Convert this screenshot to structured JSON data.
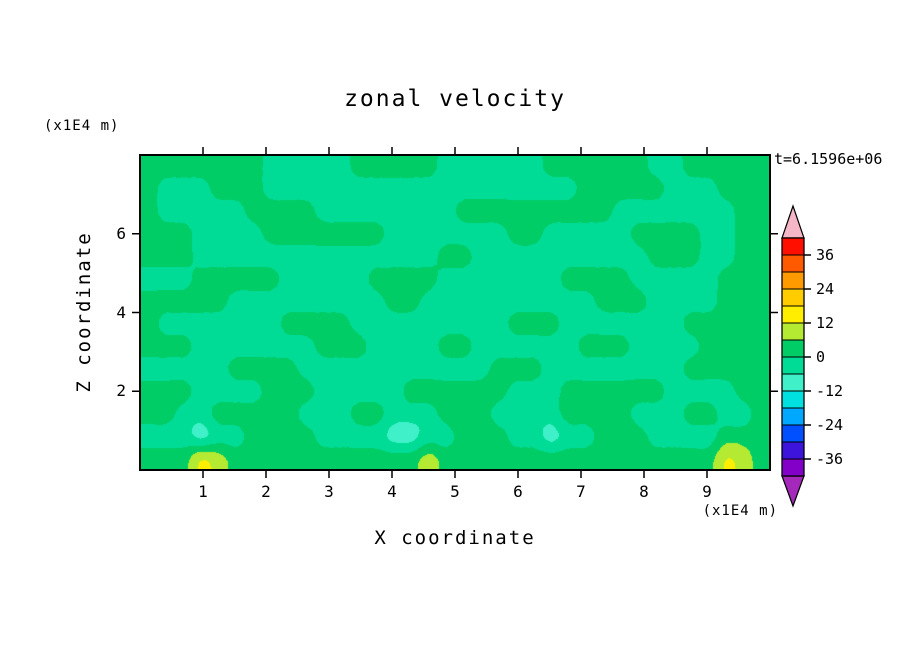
{
  "title": "zonal velocity",
  "time_label": "t=6.1596e+06",
  "axes": {
    "x_label": "X coordinate",
    "y_label": "Z coordinate",
    "x_unit": "(x1E4 m)",
    "y_unit": "(x1E4 m)",
    "x_tick_labels": [
      "1",
      "2",
      "3",
      "4",
      "5",
      "6",
      "7",
      "8",
      "9"
    ],
    "x_tick_values": [
      1,
      2,
      3,
      4,
      5,
      6,
      7,
      8,
      9
    ],
    "y_tick_labels": [
      "6",
      "4",
      "2"
    ],
    "y_tick_values": [
      6,
      4,
      2
    ]
  },
  "colorbar": {
    "labels": [
      "36",
      "24",
      "12",
      "0",
      "-12",
      "-24",
      "-36"
    ],
    "labeled_boundary_indices": [
      1,
      3,
      5,
      7,
      9,
      11,
      13
    ],
    "boundaries": [
      42,
      36,
      30,
      24,
      18,
      12,
      6,
      0,
      -6,
      -12,
      -18,
      -24,
      -30,
      -36,
      -42
    ],
    "band_colors": [
      "#FF0F00",
      "#FF5A00",
      "#FF9B00",
      "#FFCC00",
      "#FFEE00",
      "#B4EB32",
      "#00CD66",
      "#00DC96",
      "#40F0C8",
      "#00E0E0",
      "#00A8FF",
      "#0050FF",
      "#3C14DC",
      "#8200C8"
    ],
    "arrow_top_color": "#F5B6C8",
    "arrow_bottom_color": "#A428B9"
  },
  "chart_data": {
    "type": "heatmap",
    "subtype": "filled-contour",
    "title": "zonal velocity",
    "xlabel": "X coordinate (x1E4 m)",
    "ylabel": "Z coordinate (x1E4 m)",
    "time": "t=6.1596e+06",
    "x_range": [
      0,
      10
    ],
    "z_range": [
      0,
      8
    ],
    "value_range": [
      -42,
      42
    ],
    "contour_interval": 6,
    "legend_position": "right-colorbar",
    "values": [
      [
        3,
        3,
        3,
        3,
        3,
        3,
        3,
        -3,
        -3,
        -3,
        -3,
        -3,
        3,
        3,
        3,
        3,
        3,
        -3,
        -3,
        -3,
        -3,
        -3,
        -3,
        3,
        3,
        3,
        3,
        3,
        3,
        -3,
        -3,
        3,
        3,
        3,
        3,
        3
      ],
      [
        3,
        -3,
        -3,
        -3,
        3,
        3,
        3,
        -3,
        -3,
        -3,
        -3,
        -3,
        -3,
        -3,
        -3,
        -3,
        -3,
        -3,
        -3,
        -3,
        -3,
        -3,
        -3,
        -3,
        -3,
        3,
        3,
        3,
        3,
        3,
        -3,
        -3,
        -3,
        3,
        3,
        3
      ],
      [
        3,
        -3,
        -3,
        -3,
        -3,
        -3,
        3,
        3,
        3,
        3,
        -3,
        -3,
        -3,
        -3,
        -3,
        -3,
        -3,
        -3,
        3,
        3,
        3,
        3,
        3,
        3,
        3,
        3,
        3,
        -3,
        -3,
        -3,
        -3,
        -3,
        -3,
        -3,
        3,
        3
      ],
      [
        3,
        3,
        3,
        -3,
        -3,
        -3,
        -3,
        3,
        3,
        3,
        3,
        3,
        3,
        3,
        -3,
        -3,
        -3,
        -3,
        -3,
        -3,
        -3,
        3,
        3,
        -3,
        -3,
        -3,
        -3,
        -3,
        3,
        3,
        3,
        3,
        -3,
        -3,
        3,
        3
      ],
      [
        3,
        3,
        3,
        -3,
        -3,
        -3,
        -3,
        -3,
        -3,
        -3,
        -3,
        -3,
        -3,
        -3,
        -3,
        -3,
        -3,
        3,
        3,
        -3,
        -3,
        -3,
        -3,
        -3,
        -3,
        -3,
        -3,
        -3,
        -3,
        3,
        3,
        3,
        -3,
        -3,
        3,
        3
      ],
      [
        -3,
        -3,
        -3,
        3,
        3,
        3,
        3,
        3,
        -3,
        -3,
        -3,
        -3,
        -3,
        3,
        3,
        3,
        3,
        -3,
        -3,
        -3,
        -3,
        -3,
        -3,
        -3,
        3,
        3,
        3,
        3,
        -3,
        -3,
        -3,
        -3,
        -3,
        3,
        3,
        3
      ],
      [
        3,
        3,
        3,
        3,
        3,
        -3,
        -3,
        -3,
        -3,
        -3,
        -3,
        -3,
        -3,
        -3,
        3,
        3,
        -3,
        -3,
        -3,
        -3,
        -3,
        -3,
        -3,
        -3,
        -3,
        -3,
        3,
        3,
        3,
        -3,
        -3,
        -3,
        -3,
        3,
        3,
        3
      ],
      [
        3,
        -3,
        -3,
        -3,
        -3,
        -3,
        -3,
        -3,
        3,
        3,
        3,
        3,
        -3,
        -3,
        -3,
        -3,
        -3,
        -3,
        -3,
        -3,
        -3,
        3,
        3,
        3,
        -3,
        -3,
        -3,
        -3,
        -3,
        -3,
        -3,
        3,
        3,
        3,
        3,
        3
      ],
      [
        3,
        3,
        3,
        -3,
        -3,
        -3,
        -3,
        -3,
        -3,
        -3,
        3,
        3,
        3,
        -3,
        -3,
        -3,
        -3,
        3,
        3,
        -3,
        -3,
        -3,
        -3,
        -3,
        -3,
        3,
        3,
        3,
        -3,
        -3,
        -3,
        -3,
        3,
        3,
        3,
        3
      ],
      [
        -3,
        -3,
        -3,
        -3,
        -3,
        3,
        3,
        3,
        3,
        -3,
        -3,
        -3,
        -3,
        -3,
        -3,
        -3,
        -3,
        -3,
        -3,
        -3,
        3,
        3,
        3,
        -3,
        -3,
        -3,
        -3,
        -3,
        -3,
        -3,
        -3,
        3,
        3,
        3,
        3,
        3
      ],
      [
        3,
        3,
        3,
        -3,
        -3,
        -3,
        -3,
        3,
        3,
        3,
        -3,
        -3,
        -3,
        -3,
        -3,
        3,
        3,
        3,
        3,
        3,
        3,
        -3,
        -3,
        -3,
        3,
        3,
        3,
        3,
        3,
        3,
        -3,
        -3,
        -3,
        -3,
        3,
        3
      ],
      [
        3,
        3,
        -3,
        -3,
        3,
        3,
        3,
        3,
        3,
        -3,
        -3,
        -3,
        3,
        3,
        -3,
        -3,
        -3,
        3,
        3,
        3,
        -3,
        -3,
        -3,
        -3,
        3,
        3,
        3,
        3,
        -3,
        -3,
        -3,
        3,
        3,
        -3,
        -3,
        3
      ],
      [
        -3,
        -3,
        -3,
        -9,
        -3,
        -3,
        3,
        3,
        3,
        3,
        -3,
        -3,
        -3,
        -3,
        -9,
        -9,
        -3,
        -3,
        3,
        3,
        3,
        -3,
        -3,
        -9,
        -3,
        -3,
        3,
        3,
        3,
        -3,
        -3,
        -3,
        -3,
        3,
        3,
        3
      ],
      [
        3,
        3,
        3,
        13,
        9,
        3,
        3,
        3,
        3,
        3,
        3,
        3,
        3,
        3,
        3,
        3,
        9,
        3,
        3,
        3,
        3,
        3,
        3,
        3,
        3,
        3,
        3,
        3,
        3,
        3,
        3,
        3,
        3,
        13,
        9,
        3
      ]
    ]
  }
}
